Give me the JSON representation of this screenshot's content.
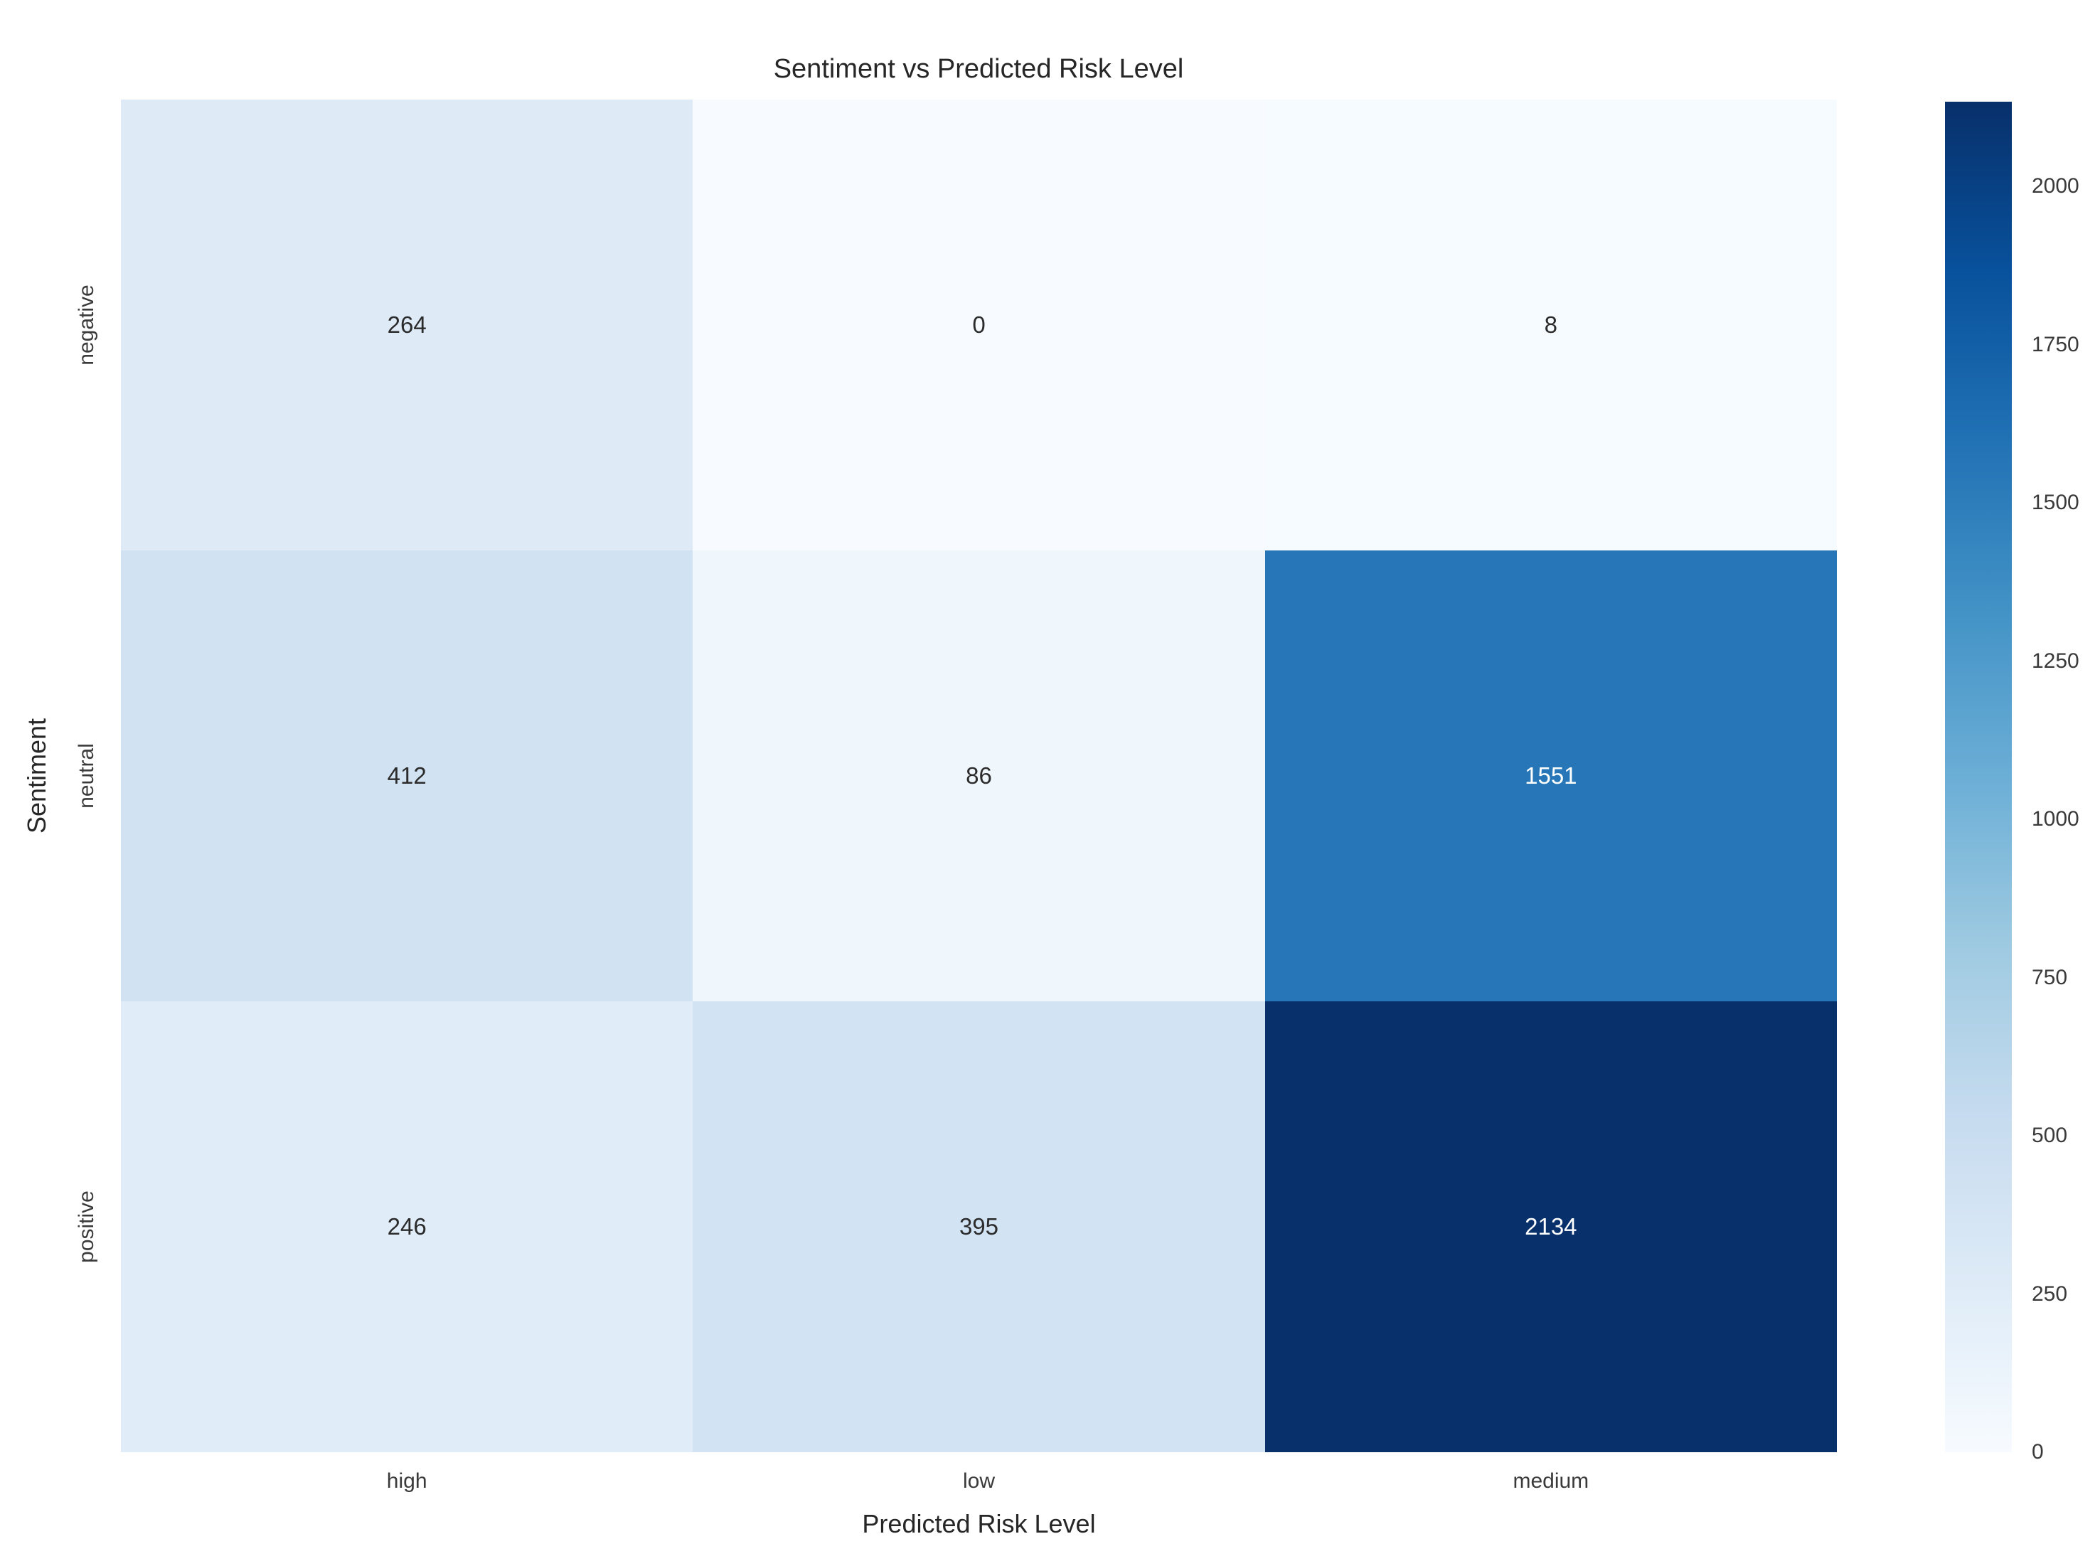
{
  "figure": {
    "background_color": "#ffffff",
    "title_color": "#262626",
    "tick_label_color": "#3a3a3a"
  },
  "chart_data": {
    "type": "heatmap",
    "title": "Sentiment vs Predicted Risk Level",
    "xlabel": "Predicted Risk Level",
    "ylabel": "Sentiment",
    "x_categories": [
      "high",
      "low",
      "medium"
    ],
    "y_categories": [
      "negative",
      "neutral",
      "positive"
    ],
    "matrix": [
      [
        264,
        0,
        8
      ],
      [
        412,
        86,
        1551
      ],
      [
        246,
        395,
        2134
      ]
    ],
    "vmin": 0,
    "vmax": 2134,
    "grid": false,
    "legend_position": "right-colorbar",
    "colorbar_ticks": [
      0,
      250,
      500,
      750,
      1000,
      1250,
      1500,
      1750,
      2000
    ],
    "colormap": {
      "name": "Blues",
      "stops": [
        "#f7fbff",
        "#deebf7",
        "#c6dbef",
        "#9ecae1",
        "#6baed6",
        "#4292c6",
        "#2171b5",
        "#08519c",
        "#08306b"
      ]
    },
    "annotation_text_dark": "#2b2b2b",
    "annotation_text_light": "#ffffff"
  }
}
